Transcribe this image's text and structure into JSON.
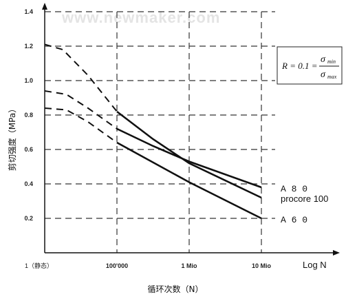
{
  "watermark": "www.newmaker.com",
  "chart_data": {
    "type": "line",
    "xlabel": "循环次数（N）",
    "xscale_label": "Log N",
    "ylabel": "剪切强度（MPa）",
    "ylim": [
      0,
      1.4
    ],
    "yticks": [
      "0.2",
      "0.4",
      "0.6",
      "0.8",
      "1.0",
      "1.2",
      "1.4"
    ],
    "x_categories": [
      "1（静态）",
      "100'000",
      "1 Mio",
      "10 Mio"
    ],
    "x_index_range": [
      0,
      3
    ],
    "grid": true,
    "formula": {
      "lhs": "R = 0.1 =",
      "num": "σ",
      "num_sub": "min",
      "den": "σ",
      "den_sub": "max"
    },
    "series": [
      {
        "name": "procore 100",
        "dashed_points": [
          [
            0,
            1.21
          ],
          [
            0.25,
            1.18
          ],
          [
            0.6,
            1.03
          ],
          [
            1,
            0.82
          ]
        ],
        "solid_points": [
          [
            1,
            0.82
          ],
          [
            1.5,
            0.66
          ],
          [
            2,
            0.52
          ],
          [
            3,
            0.32
          ]
        ]
      },
      {
        "name": "A 8 0",
        "dashed_points": [
          [
            0,
            0.94
          ],
          [
            0.3,
            0.92
          ],
          [
            0.6,
            0.84
          ],
          [
            1,
            0.72
          ]
        ],
        "solid_points": [
          [
            1,
            0.72
          ],
          [
            1.5,
            0.62
          ],
          [
            2,
            0.53
          ],
          [
            3,
            0.38
          ]
        ]
      },
      {
        "name": "A 6 0",
        "dashed_points": [
          [
            0,
            0.84
          ],
          [
            0.3,
            0.83
          ],
          [
            0.6,
            0.76
          ],
          [
            1,
            0.64
          ]
        ],
        "solid_points": [
          [
            1,
            0.64
          ],
          [
            2,
            0.41
          ],
          [
            3,
            0.2
          ]
        ]
      }
    ]
  }
}
